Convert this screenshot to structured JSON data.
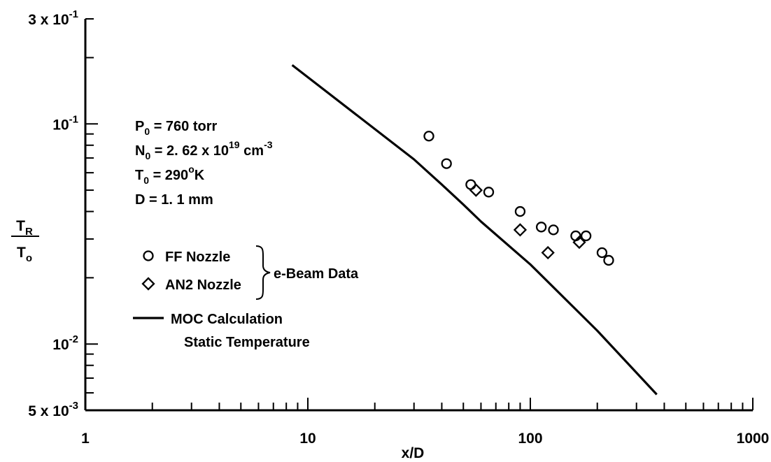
{
  "chart_data": {
    "type": "scatter",
    "x_scale": "log",
    "y_scale": "log",
    "xlim": [
      1,
      1000
    ],
    "ylim": [
      0.005,
      0.3
    ],
    "xlabel": "x/D",
    "ylabel": {
      "numerator": "T",
      "numerator_sub": "R",
      "denominator": "T",
      "denominator_sub": "o"
    },
    "x_ticks": [
      {
        "value": 1,
        "label": "1"
      },
      {
        "value": 10,
        "label": "10"
      },
      {
        "value": 100,
        "label": "100"
      },
      {
        "value": 1000,
        "label": "1000"
      }
    ],
    "y_ticks": [
      {
        "value": 0.3,
        "base": "3 x 10",
        "exp": "-1"
      },
      {
        "value": 0.1,
        "base": "10",
        "exp": "-1"
      },
      {
        "value": 0.01,
        "base": "10",
        "exp": "-2"
      },
      {
        "value": 0.005,
        "base": "5 x 10",
        "exp": "-3"
      }
    ],
    "grid": false,
    "conditions": [
      {
        "main": "P",
        "sub": "0",
        "rest": " = 760 torr"
      },
      {
        "main": "N",
        "sub": "0",
        "rest": " = 2. 62 x 10",
        "sup": "19",
        "tail": " cm",
        "tail_sup": "-3"
      },
      {
        "main": "T",
        "sub": "0",
        "rest": " = 290",
        "sup": "o",
        "tail": "K"
      },
      {
        "main": "D",
        "rest": " = 1. 1 mm"
      }
    ],
    "legend_group_label": "e-Beam Data",
    "series": [
      {
        "name": "FF Nozzle",
        "marker": "circle",
        "x": [
          35,
          42,
          54,
          65,
          90,
          112,
          127,
          160,
          178,
          210,
          225
        ],
        "y": [
          0.088,
          0.066,
          0.053,
          0.049,
          0.04,
          0.034,
          0.033,
          0.031,
          0.031,
          0.026,
          0.024
        ]
      },
      {
        "name": "AN2 Nozzle",
        "marker": "diamond",
        "x": [
          57,
          90,
          120,
          166
        ],
        "y": [
          0.05,
          0.033,
          0.026,
          0.029
        ]
      },
      {
        "name": "MOC Calculation",
        "name2": "Static Temperature",
        "type": "line",
        "x": [
          8.5,
          30,
          40,
          50,
          60,
          100,
          200,
          370
        ],
        "y": [
          0.185,
          0.069,
          0.053,
          0.043,
          0.036,
          0.023,
          0.0115,
          0.0059
        ]
      }
    ]
  }
}
